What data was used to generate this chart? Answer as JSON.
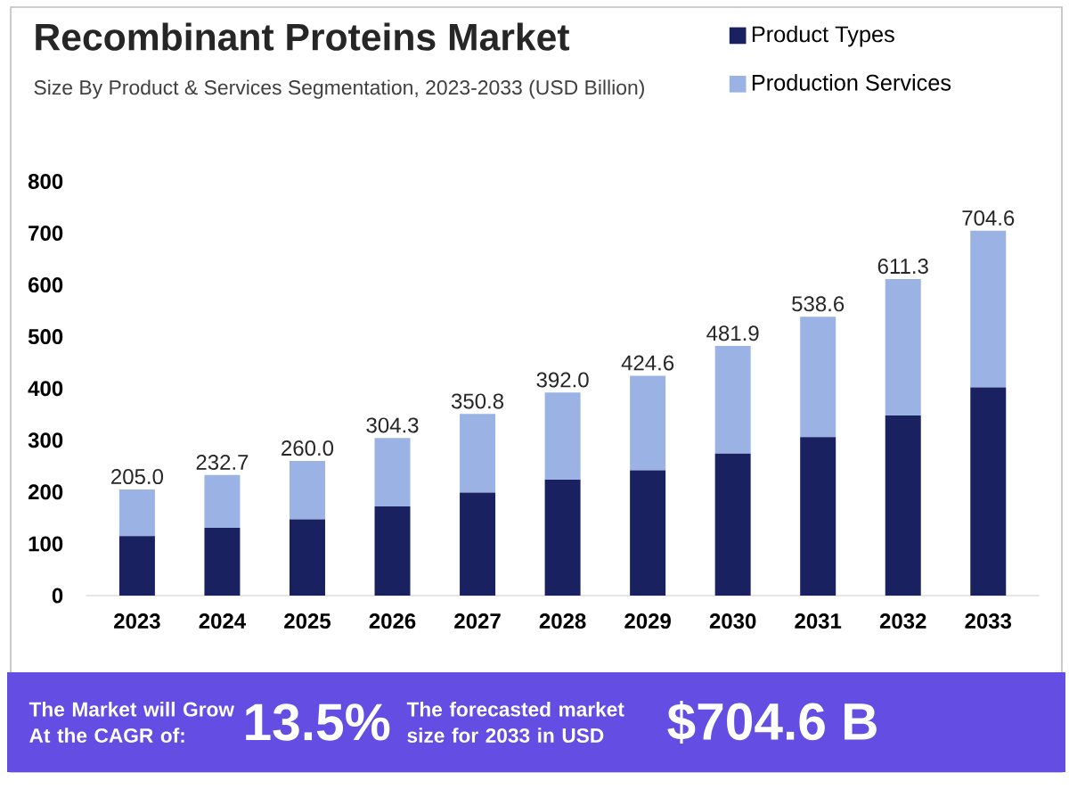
{
  "chart_data": {
    "type": "bar",
    "stacked": true,
    "title": "Recombinant Proteins Market",
    "subtitle": "Size By Product & Services Segmentation, 2023-2033 (USD Billion)",
    "categories": [
      "2023",
      "2024",
      "2025",
      "2026",
      "2027",
      "2028",
      "2029",
      "2030",
      "2031",
      "2032",
      "2033"
    ],
    "series": [
      {
        "name": "Product Types",
        "color": "#1a2160",
        "values": [
          115,
          131,
          147,
          172,
          199,
          224,
          242,
          274,
          306,
          348,
          402
        ]
      },
      {
        "name": "Production Services",
        "color": "#9bb2e4",
        "values": [
          90.0,
          101.7,
          113.0,
          132.3,
          151.8,
          168.0,
          182.6,
          207.9,
          232.6,
          263.3,
          302.6
        ]
      }
    ],
    "totals": [
      "205.0",
      "232.7",
      "260.0",
      "304.3",
      "350.8",
      "392.0",
      "424.6",
      "481.9",
      "538.6",
      "611.3",
      "704.6"
    ],
    "ylim": [
      0,
      800
    ],
    "yticks": [
      0,
      100,
      200,
      300,
      400,
      500,
      600,
      700,
      800
    ],
    "legend": "top right",
    "annotations": [
      "The Market will Grow At the CAGR of:",
      "13.5%",
      "The forecasted market size for 2033 in USD",
      "$704.6 B"
    ]
  }
}
